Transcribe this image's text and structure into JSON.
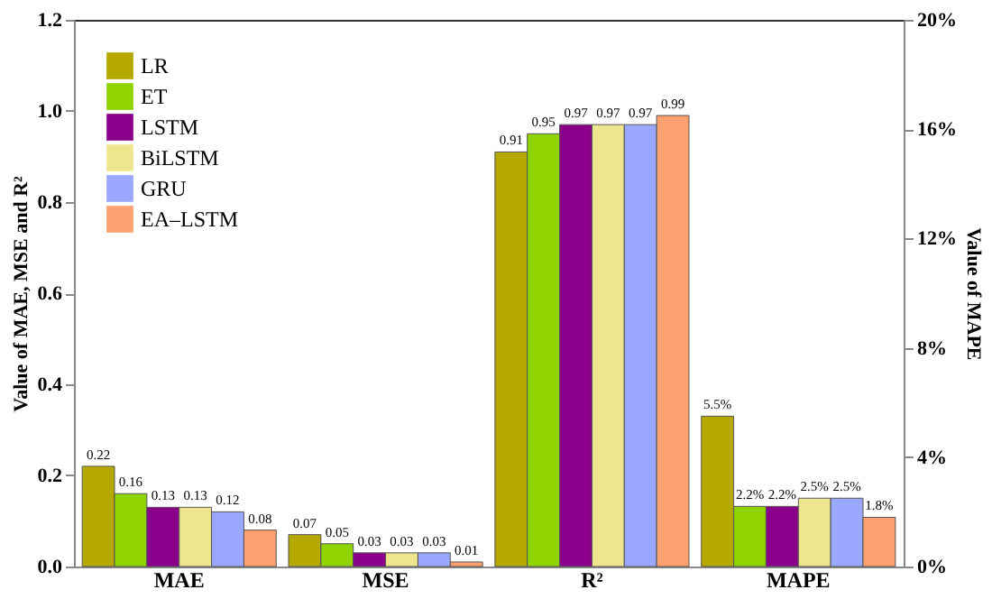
{
  "chart_data": {
    "type": "bar",
    "categories": [
      "MAE",
      "MSE",
      "R²",
      "MAPE"
    ],
    "ylabel": "Value of MAE, MSE and R²",
    "y2label": "Value of MAPE",
    "ylim": [
      0,
      1.2
    ],
    "yticks": [
      {
        "value": 0,
        "label": "0.0"
      },
      {
        "value": 0.2,
        "label": "0.2"
      },
      {
        "value": 0.4,
        "label": "0.4"
      },
      {
        "value": 0.6,
        "label": "0.6"
      },
      {
        "value": 0.8,
        "label": "0.8"
      },
      {
        "value": 1.0,
        "label": "1.0"
      },
      {
        "value": 1.2,
        "label": "1.2"
      }
    ],
    "y2lim": [
      0,
      20
    ],
    "y2ticks": [
      {
        "value": 0,
        "label": "0%"
      },
      {
        "value": 4,
        "label": "4%"
      },
      {
        "value": 8,
        "label": "8%"
      },
      {
        "value": 12,
        "label": "12%"
      },
      {
        "value": 16,
        "label": "16%"
      },
      {
        "value": 20,
        "label": "20%"
      }
    ],
    "series": [
      {
        "name": "LR",
        "color": "#b5a800",
        "values": [
          0.22,
          0.07,
          0.91,
          null
        ],
        "value_labels": [
          "0.22",
          "0.07",
          "0.91",
          null
        ]
      },
      {
        "name": "ET",
        "color": "#8fd400",
        "values": [
          0.16,
          0.05,
          0.95,
          null
        ],
        "value_labels": [
          "0.16",
          "0.05",
          "0.95",
          null
        ]
      },
      {
        "name": "LSTM",
        "color": "#8b008b",
        "values": [
          0.13,
          0.03,
          0.97,
          null
        ],
        "value_labels": [
          "0.13",
          "0.03",
          "0.97",
          null
        ]
      },
      {
        "name": "BiLSTM",
        "color": "#eee68f",
        "values": [
          0.13,
          0.03,
          0.97,
          null
        ],
        "value_labels": [
          "0.13",
          "0.03",
          "0.97",
          null
        ]
      },
      {
        "name": "GRU",
        "color": "#9aa8ff",
        "values": [
          0.12,
          0.03,
          0.97,
          null
        ],
        "value_labels": [
          "0.12",
          "0.03",
          "0.97",
          null
        ]
      },
      {
        "name": "EA–LSTM",
        "color": "#ffa070",
        "values": [
          0.08,
          0.01,
          0.99,
          null
        ],
        "value_labels": [
          "0.08",
          "0.01",
          "0.99",
          null
        ]
      },
      {
        "axis": "y2",
        "color": "#b5a800",
        "values": [
          null,
          null,
          null,
          5.5
        ],
        "value_labels": [
          null,
          null,
          null,
          "5.5%"
        ]
      },
      {
        "axis": "y2",
        "color": "#8fd400",
        "values": [
          null,
          null,
          null,
          2.2
        ],
        "value_labels": [
          null,
          null,
          null,
          "2.2%"
        ]
      },
      {
        "axis": "y2",
        "color": "#8b008b",
        "values": [
          null,
          null,
          null,
          2.2
        ],
        "value_labels": [
          null,
          null,
          null,
          "2.2%"
        ]
      },
      {
        "axis": "y2",
        "color": "#eee68f",
        "values": [
          null,
          null,
          null,
          2.5
        ],
        "value_labels": [
          null,
          null,
          null,
          "2.5%"
        ]
      },
      {
        "axis": "y2",
        "color": "#9aa8ff",
        "values": [
          null,
          null,
          null,
          2.5
        ],
        "value_labels": [
          null,
          null,
          null,
          "2.5%"
        ]
      },
      {
        "axis": "y2",
        "color": "#ffa070",
        "values": [
          null,
          null,
          null,
          1.8
        ],
        "value_labels": [
          null,
          null,
          null,
          "1.8%"
        ]
      }
    ],
    "grid": false,
    "legend": "top left"
  }
}
